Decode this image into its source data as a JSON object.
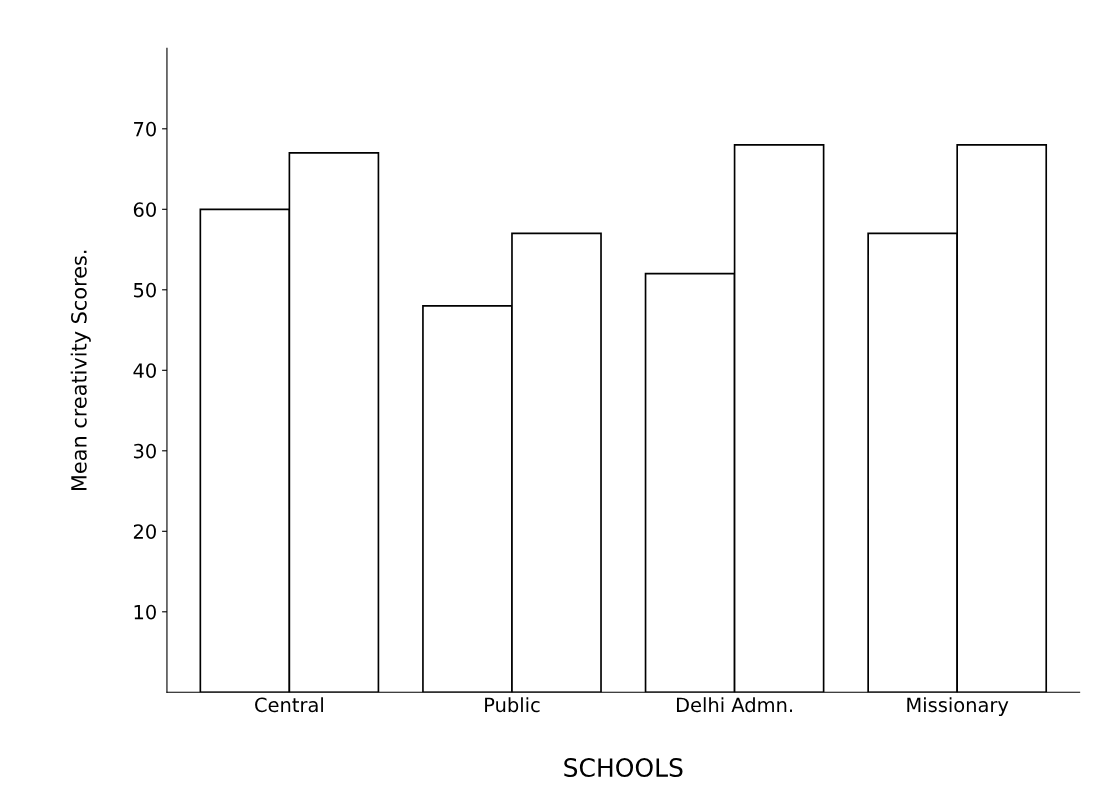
{
  "chart_data": {
    "type": "bar",
    "xlabel": "SCHOOLS",
    "ylabel": "Mean creativity Scores.",
    "categories": [
      "Central",
      "Public",
      "Delhi Admn.",
      "Missionary"
    ],
    "series": [
      {
        "color": "#ffffff",
        "values": [
          60,
          48,
          52,
          57
        ]
      },
      {
        "color": "#ffffff",
        "values": [
          67,
          57,
          68,
          68
        ]
      }
    ],
    "ylim": [
      0,
      80
    ],
    "yticks": [
      10,
      20,
      30,
      40,
      50,
      60,
      70
    ],
    "grid": false,
    "legend": false
  }
}
